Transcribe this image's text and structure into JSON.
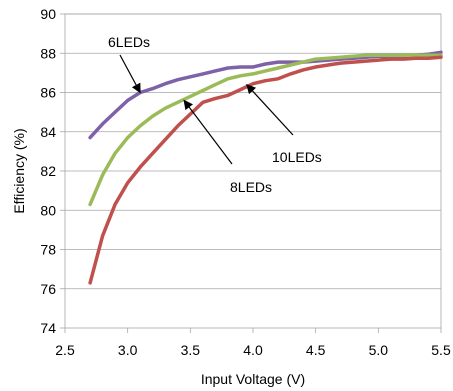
{
  "chart_data": {
    "type": "line",
    "title": "",
    "xlabel": "Input Voltage (V)",
    "ylabel": "Efficiency (%)",
    "xlim": [
      2.5,
      5.5
    ],
    "ylim": [
      74,
      90
    ],
    "xticks": [
      "2.5",
      "3.0",
      "3.5",
      "4.0",
      "4.5",
      "5.0",
      "5.5"
    ],
    "yticks": [
      "74",
      "76",
      "78",
      "80",
      "82",
      "84",
      "86",
      "88",
      "90"
    ],
    "grid": "horizontal",
    "legend": "none",
    "series": [
      {
        "name": "6LEDs",
        "color": "#7e62a8",
        "x": [
          2.7,
          2.8,
          2.9,
          3.0,
          3.1,
          3.2,
          3.3,
          3.4,
          3.5,
          3.6,
          3.7,
          3.8,
          3.9,
          4.0,
          4.1,
          4.2,
          4.3,
          4.4,
          4.5,
          4.6,
          4.7,
          4.8,
          4.9,
          5.0,
          5.1,
          5.2,
          5.3,
          5.4,
          5.5
        ],
        "y": [
          83.7,
          84.4,
          85.0,
          85.6,
          86.0,
          86.2,
          86.45,
          86.65,
          86.8,
          86.95,
          87.1,
          87.25,
          87.3,
          87.3,
          87.45,
          87.55,
          87.55,
          87.55,
          87.6,
          87.65,
          87.7,
          87.75,
          87.8,
          87.85,
          87.85,
          87.85,
          87.9,
          87.95,
          88.05
        ]
      },
      {
        "name": "8LEDs",
        "color": "#9bbb59",
        "x": [
          2.7,
          2.8,
          2.9,
          3.0,
          3.1,
          3.2,
          3.3,
          3.4,
          3.5,
          3.6,
          3.7,
          3.8,
          3.9,
          4.0,
          4.1,
          4.2,
          4.3,
          4.4,
          4.5,
          4.6,
          4.7,
          4.8,
          4.9,
          5.0,
          5.1,
          5.2,
          5.3,
          5.4,
          5.5
        ],
        "y": [
          80.3,
          81.8,
          82.9,
          83.7,
          84.3,
          84.8,
          85.2,
          85.5,
          85.8,
          86.1,
          86.4,
          86.7,
          86.85,
          86.95,
          87.1,
          87.25,
          87.4,
          87.55,
          87.7,
          87.75,
          87.8,
          87.85,
          87.9,
          87.9,
          87.9,
          87.9,
          87.9,
          87.9,
          87.9
        ]
      },
      {
        "name": "10LEDs",
        "color": "#c0504d",
        "x": [
          2.7,
          2.8,
          2.9,
          3.0,
          3.1,
          3.2,
          3.3,
          3.4,
          3.5,
          3.6,
          3.7,
          3.8,
          3.9,
          4.0,
          4.1,
          4.2,
          4.3,
          4.4,
          4.5,
          4.6,
          4.7,
          4.8,
          4.9,
          5.0,
          5.1,
          5.2,
          5.3,
          5.4,
          5.5
        ],
        "y": [
          76.3,
          78.7,
          80.3,
          81.4,
          82.2,
          82.9,
          83.6,
          84.3,
          84.9,
          85.5,
          85.7,
          85.85,
          86.15,
          86.45,
          86.6,
          86.7,
          86.95,
          87.15,
          87.3,
          87.4,
          87.5,
          87.55,
          87.6,
          87.65,
          87.7,
          87.7,
          87.75,
          87.75,
          87.8
        ]
      }
    ],
    "annotations": [
      {
        "text": "6LEDs",
        "series": "6LEDs",
        "target": [
          3.1,
          86.0
        ]
      },
      {
        "text": "8LEDs",
        "series": "8LEDs",
        "target": [
          3.45,
          85.6
        ]
      },
      {
        "text": "10LEDs",
        "series": "10LEDs",
        "target": [
          3.95,
          86.4
        ]
      }
    ]
  }
}
